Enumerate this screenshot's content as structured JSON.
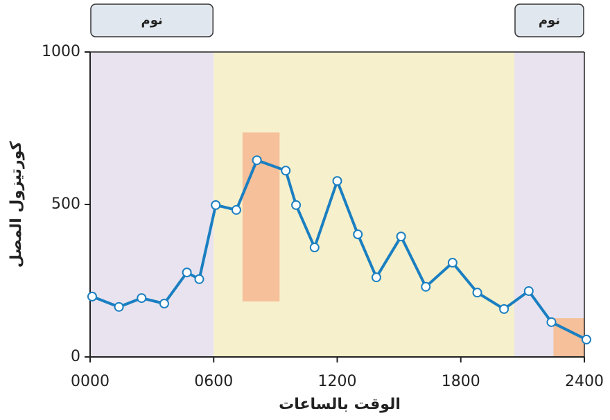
{
  "chart_data": {
    "type": "line",
    "x_label": "الوقت بالساعات",
    "y_label": "كورتيزول المصل",
    "x": [
      0.1,
      1.4,
      2.5,
      3.6,
      4.7,
      5.3,
      6.1,
      7.1,
      8.1,
      9.5,
      10.0,
      10.9,
      12.0,
      13.0,
      13.9,
      15.1,
      16.3,
      17.6,
      18.8,
      20.1,
      21.3,
      22.4,
      24.1
    ],
    "series": [
      {
        "color": "#1a7fc1",
        "values": [
          198,
          164,
          193,
          175,
          277,
          255,
          498,
          482,
          645,
          611,
          498,
          359,
          577,
          402,
          261,
          395,
          230,
          309,
          211,
          157,
          216,
          114,
          57
        ]
      }
    ],
    "xlim": [
      0,
      24
    ],
    "ylim": [
      0,
      1000
    ],
    "xticks": [
      {
        "value": 0,
        "label": "0000"
      },
      {
        "value": 6,
        "label": "0600"
      },
      {
        "value": 12,
        "label": "1200"
      },
      {
        "value": 18,
        "label": "1800"
      },
      {
        "value": 24,
        "label": "2400"
      }
    ],
    "yticks": [
      0,
      500,
      1000
    ],
    "sleep_bands": [
      {
        "label": "نوم",
        "x": [
          0,
          6
        ],
        "color": "#e8e3ee"
      },
      {
        "label": "نوم",
        "x": [
          20.6,
          24
        ],
        "color": "#e8e3ee"
      }
    ],
    "wake_band": {
      "x": [
        6,
        20.6
      ],
      "color": "#f7f0cc"
    },
    "highlights": [
      {
        "x": [
          7.4,
          9.2
        ],
        "y": [
          182,
          736
        ],
        "color": "#f5c09a"
      },
      {
        "x": [
          22.5,
          24
        ],
        "y": [
          0,
          127
        ],
        "color": "#f5c09a"
      }
    ]
  }
}
